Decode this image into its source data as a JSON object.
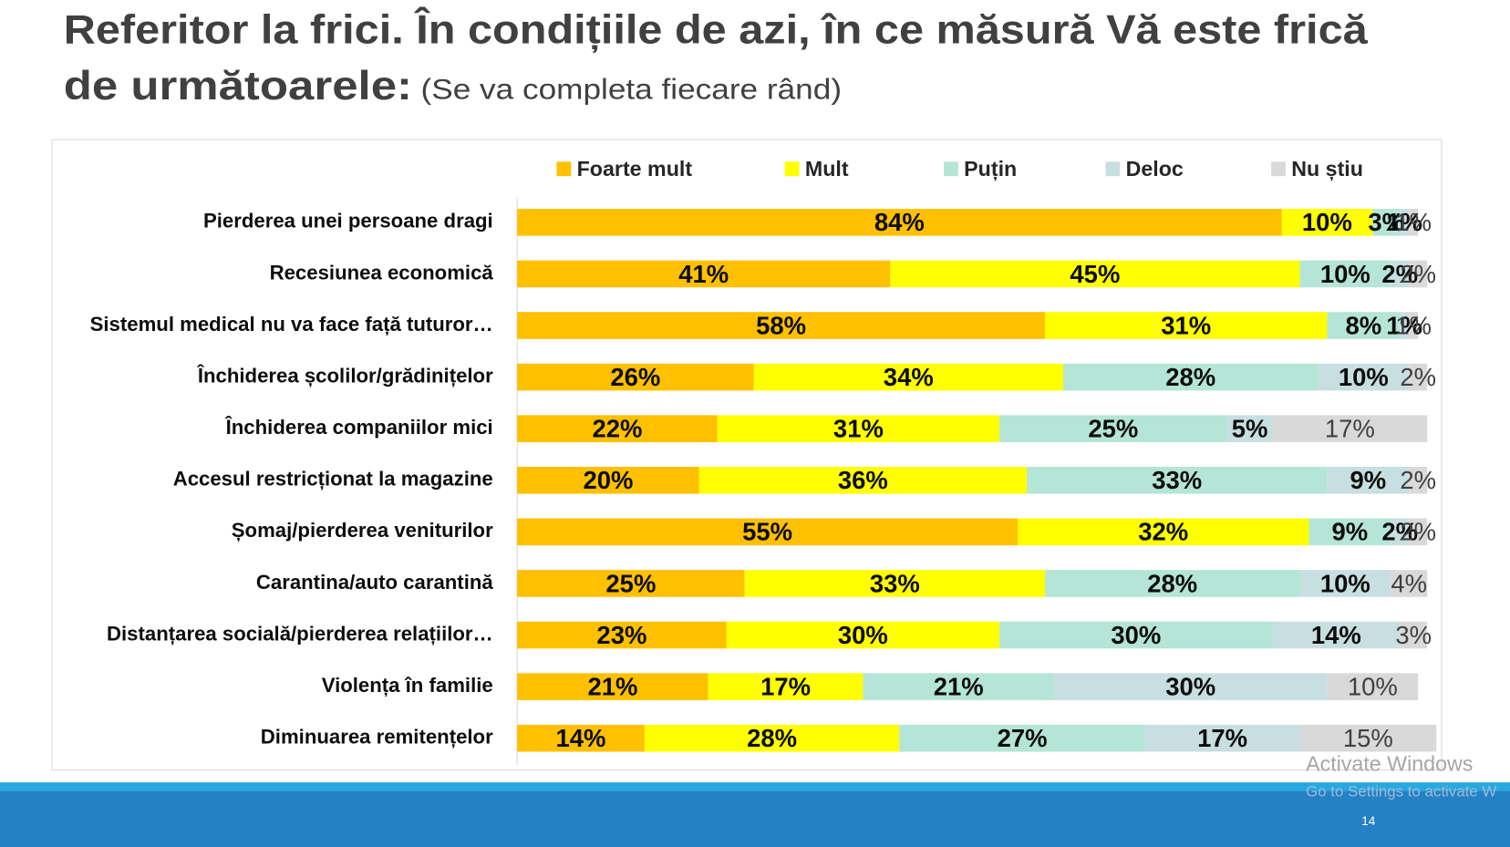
{
  "slide": {
    "title_line1": "Referitor la frici. În condițiile de azi, în ce măsură Vă este frică",
    "title_line2": "de următoarele:",
    "subtitle": "(Se va completa fiecare rând)",
    "page_number": "14"
  },
  "watermark": {
    "title": "Activate Windows",
    "subtitle": "Go to Settings to activate W"
  },
  "chart_data": {
    "type": "bar",
    "orientation": "horizontal",
    "stacked": true,
    "xlim": [
      0,
      100
    ],
    "categories": [
      "Pierderea unei persoane dragi",
      "Recesiunea economică",
      "Sistemul medical nu va face față tuturor…",
      "Închiderea școlilor/grădinițelor",
      "Închiderea companiilor mici",
      "Accesul restricționat la magazine",
      "Șomaj/pierderea veniturilor",
      "Carantina/auto carantină",
      "Distanțarea socială/pierderea relațiilor…",
      "Violența în familie",
      "Diminuarea remitențelor"
    ],
    "legend": "top",
    "series": [
      {
        "name": "Foarte mult",
        "color": "#FFC000",
        "values": [
          84,
          41,
          58,
          26,
          22,
          20,
          55,
          25,
          23,
          21,
          14
        ],
        "value_labels": [
          "84%",
          "41%",
          "58%",
          "26%",
          "22%",
          "20%",
          "55%",
          "25%",
          "23%",
          "21%",
          "14%"
        ]
      },
      {
        "name": "Mult",
        "color": "#FFFF00",
        "values": [
          10,
          45,
          31,
          34,
          31,
          36,
          32,
          33,
          30,
          17,
          28
        ],
        "value_labels": [
          "10%",
          "45%",
          "31%",
          "34%",
          "31%",
          "36%",
          "32%",
          "33%",
          "30%",
          "17%",
          "28%"
        ]
      },
      {
        "name": "Puțin",
        "color": "#B4E5D6",
        "values": [
          3,
          10,
          8,
          28,
          25,
          33,
          9,
          28,
          30,
          21,
          27
        ],
        "value_labels": [
          "3%",
          "10%",
          "8%",
          "28%",
          "25%",
          "33%",
          "9%",
          "28%",
          "30%",
          "21%",
          "27%"
        ]
      },
      {
        "name": "Deloc",
        "color": "#C8DFE1",
        "values": [
          1,
          2,
          1,
          10,
          5,
          9,
          2,
          10,
          14,
          30,
          17
        ],
        "value_labels": [
          "1%",
          "2%",
          "1%",
          "10%",
          "5%",
          "9%",
          "2%",
          "10%",
          "14%",
          "30%",
          "17%"
        ]
      },
      {
        "name": "Nu știu",
        "color": "#D9D9D9",
        "values": [
          1,
          2,
          1,
          2,
          17,
          2,
          2,
          4,
          3,
          10,
          15
        ],
        "value_labels": [
          "1%",
          "2%",
          "1%",
          "2%",
          "17%",
          "2%",
          "2%",
          "4%",
          "3%",
          "10%",
          "15%"
        ]
      }
    ]
  }
}
